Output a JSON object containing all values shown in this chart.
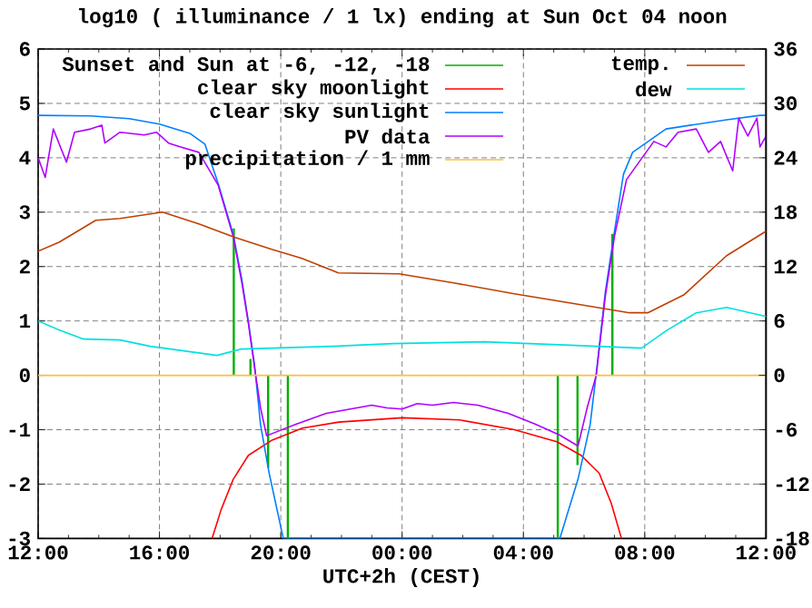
{
  "chart_data": {
    "type": "line",
    "title": "log10 ( illuminance / 1 lx) ending at Sun Oct 04 noon",
    "xlabel": "UTC+2h (CEST)",
    "xlim": [
      "--10-03T12:00",
      "--10-04T12:00"
    ],
    "xticks": [
      {
        "value": "--10-03T12:00",
        "label": "12:00"
      },
      {
        "value": "--10-03T16:00",
        "label": "16:00"
      },
      {
        "value": "--10-03T20:00",
        "label": "20:00"
      },
      {
        "value": "--10-04T00:00",
        "label": "00:00"
      },
      {
        "value": "--10-04T04:00",
        "label": "04:00"
      },
      {
        "value": "--10-04T08:00",
        "label": "08:00"
      },
      {
        "value": "--10-04T12:00",
        "label": "12:00"
      }
    ],
    "ylim": [
      -3,
      6
    ],
    "yticks": [
      -3,
      -2,
      -1,
      0,
      1,
      2,
      3,
      4,
      5,
      6
    ],
    "y2lim": [
      -18,
      36
    ],
    "y2ticks": [
      -18,
      -12,
      -6,
      0,
      6,
      12,
      18,
      24,
      30,
      36
    ],
    "grid": true,
    "legend": "top",
    "series": [
      {
        "name": "Sunset and Sun at -6, -12, -18",
        "type": "bar",
        "color": "#00b000",
        "x": [
          "--10-03T18:27",
          "--10-03T19:00",
          "--10-03T19:35",
          "--10-03T20:14",
          "--10-04T05:08",
          "--10-04T05:47",
          "--10-04T06:56"
        ],
        "values": [
          2.7,
          0.3,
          -1.7,
          -3,
          -3,
          -1.65,
          2.6
        ]
      },
      {
        "name": "clear sky moonlight",
        "color": "#ff0000",
        "x": [
          "--10-03T17:44",
          "--10-03T18:02",
          "--10-03T18:26",
          "--10-03T18:56",
          "--10-03T19:43",
          "--10-03T20:43",
          "--10-03T21:55",
          "--10-04T00:00",
          "--10-04T01:54",
          "--10-04T03:42",
          "--10-04T05:06",
          "--10-04T05:54",
          "--10-04T06:30",
          "--10-04T06:54",
          "--10-04T07:14"
        ],
        "values": [
          -3,
          -2.47,
          -1.91,
          -1.47,
          -1.19,
          -0.97,
          -0.86,
          -0.78,
          -0.82,
          -1.0,
          -1.22,
          -1.47,
          -1.8,
          -2.36,
          -3
        ]
      },
      {
        "name": "clear sky sunlight",
        "color": "#0080ff",
        "x": [
          "--10-03T12:00",
          "--10-03T13:44",
          "--10-03T15:00",
          "--10-03T16:00",
          "--10-03T17:00",
          "--10-03T17:30",
          "--10-03T17:56",
          "--10-03T18:26",
          "--10-03T18:43",
          "--10-03T18:56",
          "--10-03T19:08",
          "--10-03T19:20",
          "--10-03T19:37",
          "--10-03T20:05",
          "--10-04T05:12",
          "--10-04T05:48",
          "--10-04T06:12",
          "--10-04T06:24",
          "--10-04T06:42",
          "--10-04T07:00",
          "--10-04T07:18",
          "--10-04T07:36",
          "--10-04T08:42",
          "--10-04T10:42",
          "--10-04T11:48",
          "--10-04T12:00"
        ],
        "values": [
          4.78,
          4.77,
          4.72,
          4.62,
          4.45,
          4.25,
          3.53,
          2.59,
          1.76,
          0.98,
          0.2,
          -0.91,
          -1.8,
          -3,
          -3,
          -1.91,
          -0.91,
          0.03,
          1.53,
          2.64,
          3.7,
          4.1,
          4.53,
          4.7,
          4.78,
          4.78
        ]
      },
      {
        "name": "PV data",
        "color": "#b000ff",
        "x": [
          "--10-03T12:00",
          "--10-03T12:14",
          "--10-03T12:30",
          "--10-03T12:56",
          "--10-03T13:12",
          "--10-03T13:44",
          "--10-03T14:06",
          "--10-03T14:12",
          "--10-03T14:42",
          "--10-03T15:30",
          "--10-03T15:54",
          "--10-03T16:18",
          "--10-03T16:42",
          "--10-03T17:18",
          "--10-03T17:56",
          "--10-03T18:26",
          "--10-03T18:43",
          "--10-03T18:56",
          "--10-03T19:08",
          "--10-03T19:20",
          "--10-03T19:32",
          "--10-03T20:30",
          "--10-03T21:30",
          "--10-03T22:30",
          "--10-03T23:00",
          "--10-03T23:30",
          "--10-04T00:00",
          "--10-04T00:30",
          "--10-04T01:00",
          "--10-04T01:42",
          "--10-04T02:30",
          "--10-04T03:30",
          "--10-04T04:24",
          "--10-04T05:12",
          "--10-04T05:48",
          "--10-04T06:06",
          "--10-04T06:24",
          "--10-04T06:42",
          "--10-04T07:00",
          "--10-04T07:24",
          "--10-04T08:18",
          "--10-04T08:42",
          "--10-04T09:06",
          "--10-04T09:42",
          "--10-04T10:06",
          "--10-04T10:30",
          "--10-04T10:54",
          "--10-04T11:06",
          "--10-04T11:24",
          "--10-04T11:42",
          "--10-04T11:48",
          "--10-04T12:00"
        ],
        "values": [
          4.0,
          3.64,
          4.53,
          3.92,
          4.47,
          4.53,
          4.6,
          4.27,
          4.47,
          4.42,
          4.47,
          4.27,
          4.2,
          4.1,
          3.5,
          2.55,
          1.7,
          0.95,
          0.15,
          -0.6,
          -1.11,
          -0.9,
          -0.7,
          -0.6,
          -0.55,
          -0.6,
          -0.62,
          -0.52,
          -0.55,
          -0.5,
          -0.55,
          -0.7,
          -0.9,
          -1.1,
          -1.3,
          -0.6,
          0.0,
          1.45,
          2.55,
          3.6,
          4.3,
          4.2,
          4.47,
          4.53,
          4.1,
          4.3,
          3.76,
          4.73,
          4.4,
          4.73,
          4.2,
          4.4
        ]
      },
      {
        "name": "precipitation / 1 mm",
        "color": "#ffc040",
        "x": [
          "--10-03T12:00",
          "--10-04T12:00"
        ],
        "values": [
          0,
          0
        ]
      },
      {
        "name": "temp.",
        "color": "#c04000",
        "axis": "y2",
        "x": [
          "--10-03T12:00",
          "--10-03T12:42",
          "--10-03T13:18",
          "--10-03T13:54",
          "--10-03T14:42",
          "--10-03T16:06",
          "--10-03T17:18",
          "--10-03T18:30",
          "--10-03T19:42",
          "--10-03T20:42",
          "--10-03T21:54",
          "--10-03T23:54",
          "--10-04T01:42",
          "--10-04T03:42",
          "--10-04T05:42",
          "--10-04T07:30",
          "--10-04T08:06",
          "--10-04T09:18",
          "--10-04T10:42",
          "--10-04T12:00"
        ],
        "values": [
          13.7,
          14.7,
          15.9,
          17.1,
          17.3,
          18.0,
          16.7,
          15.2,
          13.9,
          12.9,
          11.3,
          11.2,
          10.2,
          9.0,
          7.9,
          6.9,
          6.9,
          8.9,
          13.2,
          15.9
        ]
      },
      {
        "name": "dew",
        "color": "#00e0e0",
        "axis": "y2",
        "x": [
          "--10-03T12:00",
          "--10-03T12:42",
          "--10-03T13:30",
          "--10-03T14:42",
          "--10-03T15:42",
          "--10-03T17:54",
          "--10-03T18:42",
          "--10-03T21:42",
          "--10-03T23:42",
          "--10-04T02:42",
          "--10-04T05:42",
          "--10-04T07:54",
          "--10-04T08:42",
          "--10-04T09:42",
          "--10-04T10:42",
          "--10-04T12:00"
        ],
        "values": [
          6.0,
          5.0,
          4.0,
          3.9,
          3.2,
          2.2,
          2.9,
          3.2,
          3.5,
          3.7,
          3.3,
          3.0,
          4.9,
          6.9,
          7.5,
          6.5
        ]
      }
    ]
  }
}
